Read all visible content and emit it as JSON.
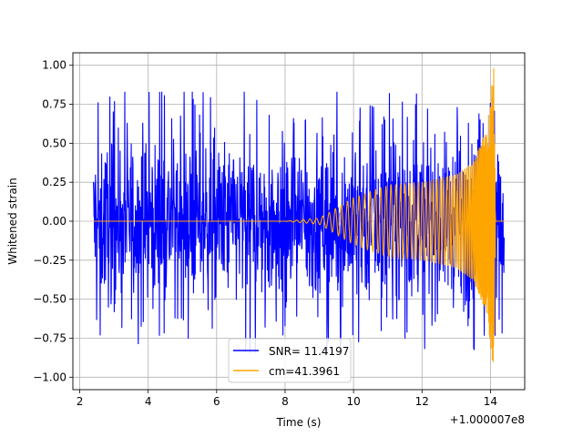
{
  "chart_data": {
    "type": "line",
    "title": "",
    "xlabel": "Time (s)",
    "ylabel": "Whitened strain",
    "x_offset_label": "+1.000007e8",
    "xlim": [
      1.8,
      15.0
    ],
    "ylim": [
      -1.08,
      1.08
    ],
    "x_ticks": [
      2,
      4,
      6,
      8,
      10,
      12,
      14
    ],
    "x_tick_labels": [
      "2",
      "4",
      "6",
      "8",
      "10",
      "12",
      "14"
    ],
    "y_ticks": [
      -1.0,
      -0.75,
      -0.5,
      -0.25,
      0.0,
      0.25,
      0.5,
      0.75,
      1.0
    ],
    "y_tick_labels": [
      "−1.00",
      "−0.75",
      "−0.50",
      "−0.25",
      "0.00",
      "0.25",
      "0.50",
      "0.75",
      "1.00"
    ],
    "grid": true,
    "legend_position": "lower-center",
    "series": [
      {
        "name": "SNR= 11.4197",
        "color": "#0000ff",
        "description": "whitened noisy strain",
        "x_range": [
          2.4,
          14.4
        ],
        "typical_amplitude": 0.45,
        "peak_min": -0.91,
        "peak_max": 0.83
      },
      {
        "name": "cm=41.3961",
        "color": "#ffa500",
        "description": "template chirp",
        "x_range": [
          2.4,
          14.4
        ],
        "envelope": [
          {
            "x": 2.4,
            "y": 0.0
          },
          {
            "x": 8.0,
            "y": 0.0
          },
          {
            "x": 9.0,
            "y": 0.02
          },
          {
            "x": 10.0,
            "y": 0.15
          },
          {
            "x": 11.0,
            "y": 0.23
          },
          {
            "x": 12.0,
            "y": 0.25
          },
          {
            "x": 13.0,
            "y": 0.3
          },
          {
            "x": 13.5,
            "y": 0.38
          },
          {
            "x": 13.9,
            "y": 0.6
          },
          {
            "x": 14.1,
            "y": 1.0
          },
          {
            "x": 14.15,
            "y": 0.0
          },
          {
            "x": 14.4,
            "y": 0.0
          }
        ],
        "peak_min": -0.98,
        "peak_max": 1.0
      }
    ]
  }
}
